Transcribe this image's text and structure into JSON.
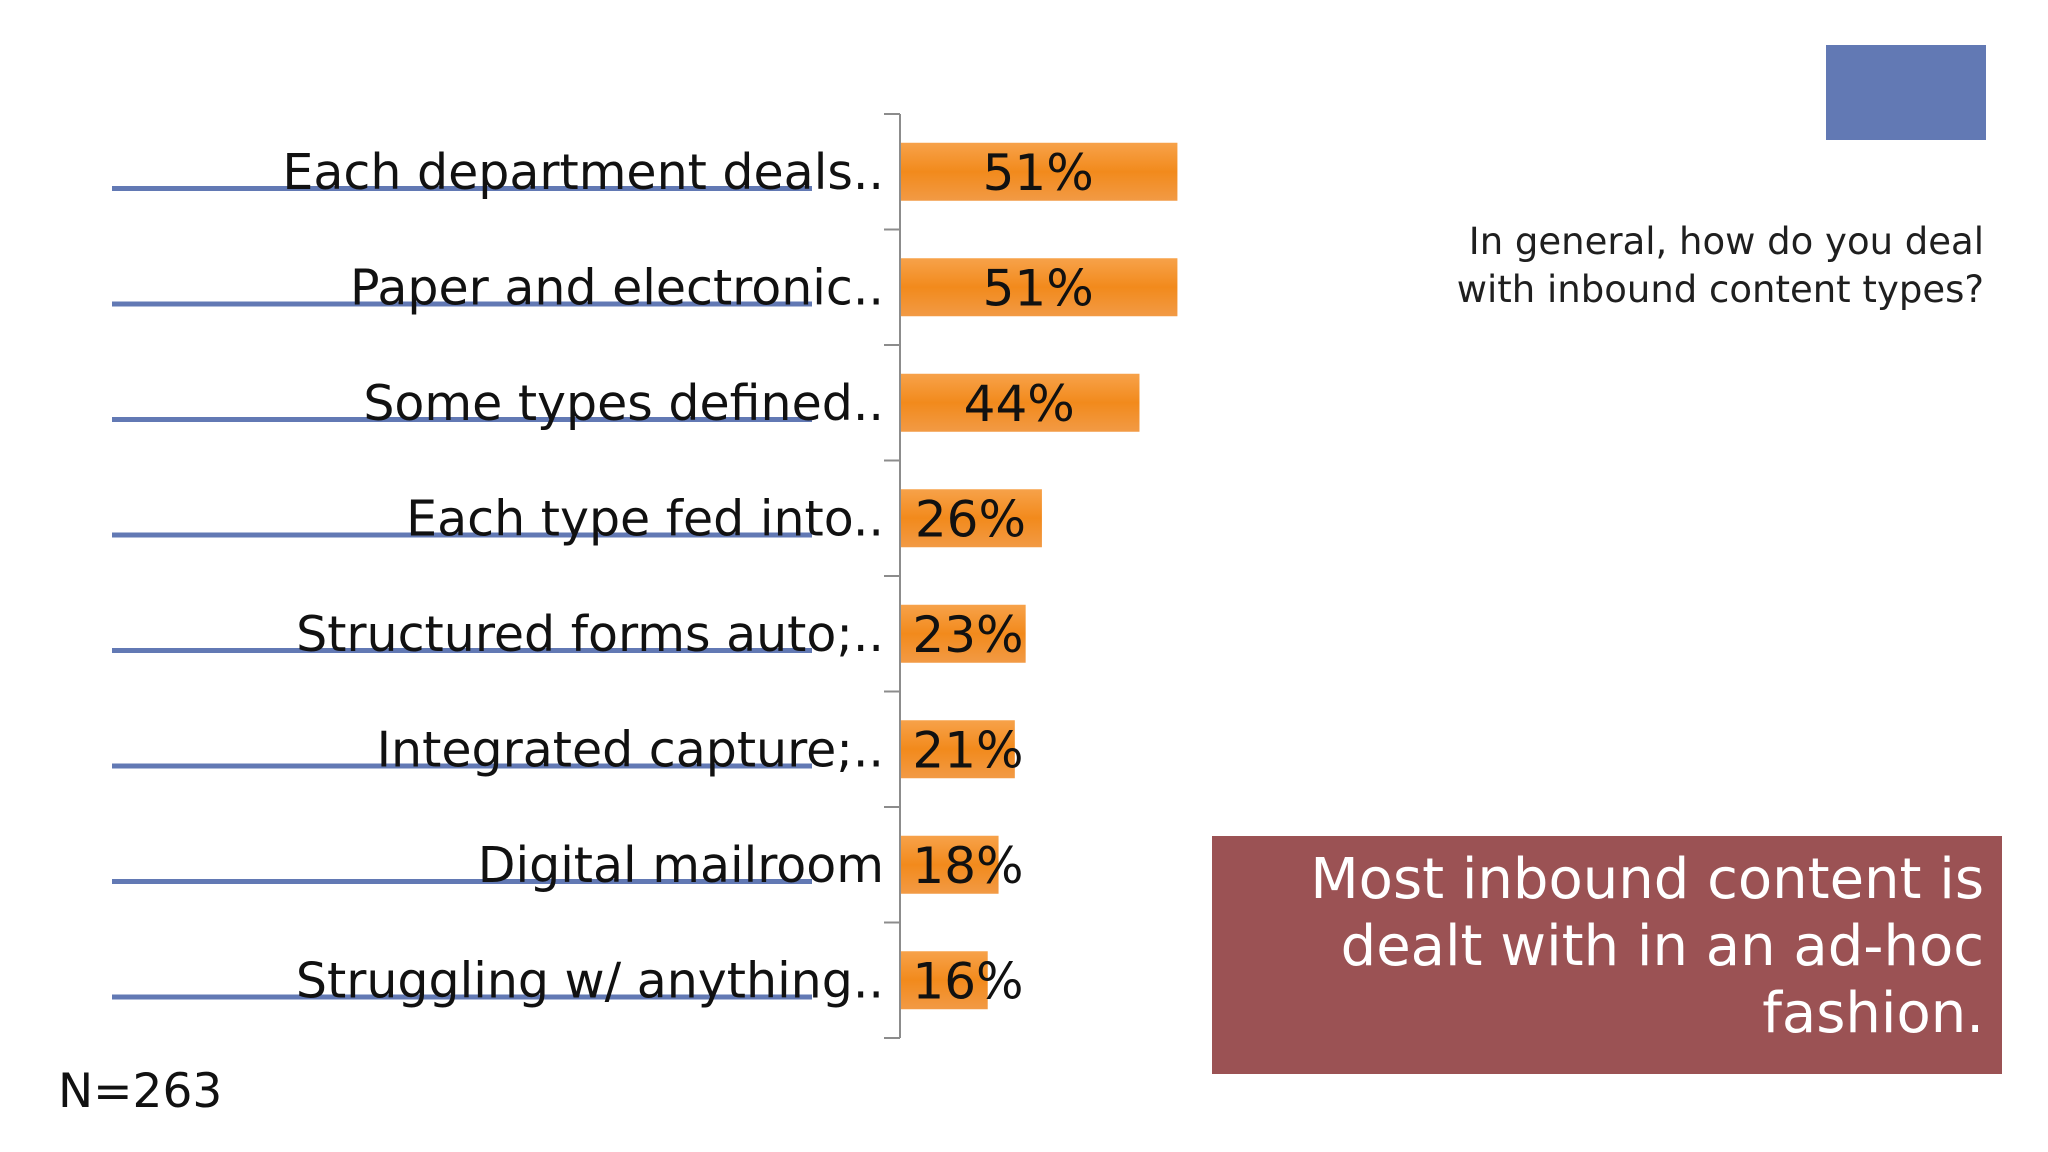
{
  "question": "In general, how do you deal with inbound content types?",
  "callout": "Most inbound content is dealt with in an ad-hoc fashion.",
  "sample": "N=263",
  "colors": {
    "bar": "#f28a1c",
    "rule": "#6279b4",
    "accent": "#6279b4",
    "callout_bg": "#9b5254"
  },
  "chart_data": {
    "type": "bar",
    "orientation": "horizontal",
    "categories": [
      "Each department deals..",
      "Paper and electronic..",
      "Some types defined..",
      "Each type fed into..",
      "Structured forms auto;..",
      "Integrated capture;..",
      "Digital mailroom",
      "Struggling w/ anything.."
    ],
    "values": [
      51,
      51,
      44,
      26,
      23,
      21,
      18,
      16
    ],
    "labels": [
      "51%",
      "51%",
      "44%",
      "26%",
      "23%",
      "21%",
      "18%",
      "16%"
    ],
    "unit": "%",
    "xlim": [
      0,
      100
    ],
    "grid": false,
    "legend": "none"
  }
}
